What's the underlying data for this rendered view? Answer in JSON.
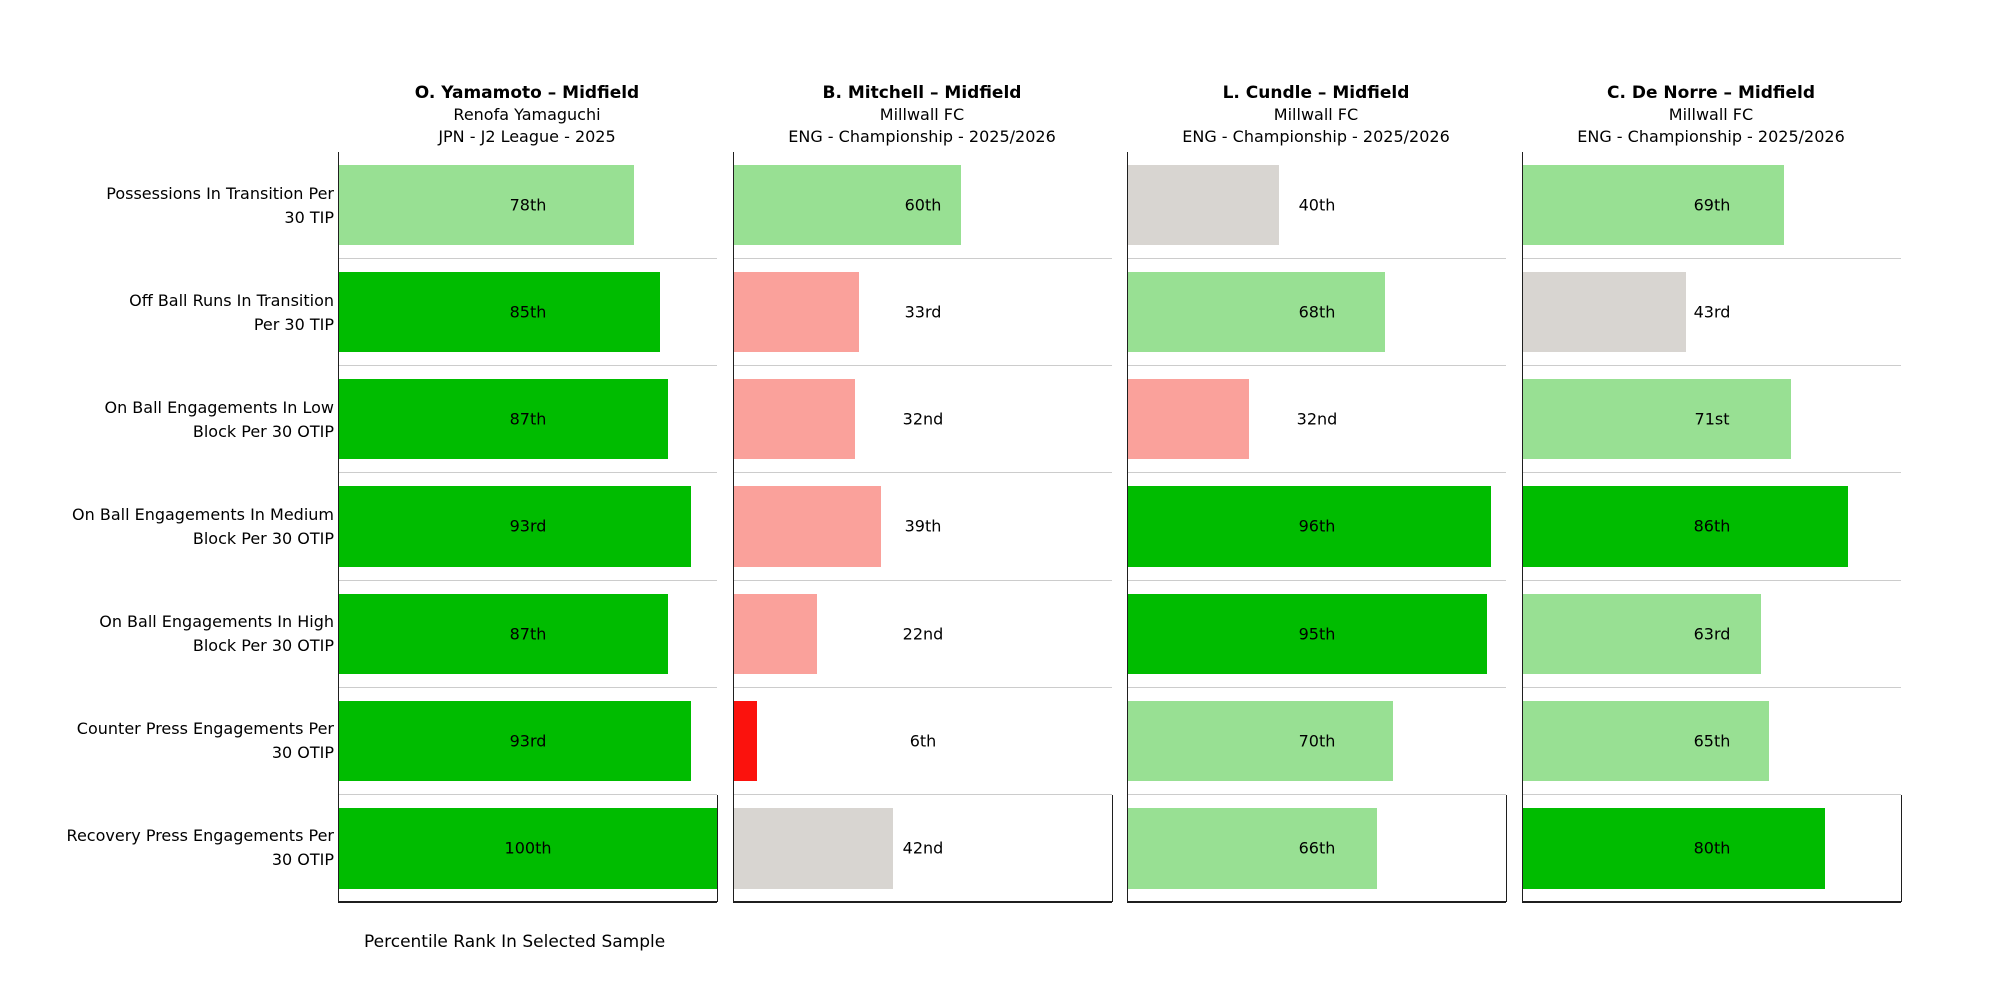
{
  "footer": "Percentile Rank In Selected Sample",
  "chart_data": {
    "type": "bar",
    "orientation": "horizontal",
    "unit": "percentile rank",
    "xlim": [
      0,
      100
    ],
    "grid": false,
    "xlabel": "Percentile Rank In Selected Sample",
    "categories": [
      "Possessions In Transition Per\n30 TIP",
      "Off Ball Runs In Transition\nPer 30 TIP",
      "On Ball Engagements In Low\nBlock Per 30 OTIP",
      "On Ball Engagements In Medium\nBlock Per 30 OTIP",
      "On Ball Engagements In High\nBlock Per 30 OTIP",
      "Counter Press Engagements Per\n30 OTIP",
      "Recovery Press Engagements Per\n30 OTIP"
    ],
    "series": [
      {
        "name": "O. Yamamoto – Midfield",
        "club": "Renofa Yamaguchi",
        "league": "JPN - J2 League - 2025",
        "values": [
          78,
          85,
          87,
          93,
          87,
          93,
          100
        ],
        "labels": [
          "78th",
          "85th",
          "87th",
          "93rd",
          "87th",
          "93rd",
          "100th"
        ]
      },
      {
        "name": "B. Mitchell – Midfield",
        "club": "Millwall FC",
        "league": "ENG - Championship - 2025/2026",
        "values": [
          60,
          33,
          32,
          39,
          22,
          6,
          42
        ],
        "labels": [
          "60th",
          "33rd",
          "32nd",
          "39th",
          "22nd",
          "6th",
          "42nd"
        ]
      },
      {
        "name": "L. Cundle – Midfield",
        "club": "Millwall FC",
        "league": "ENG - Championship - 2025/2026",
        "values": [
          40,
          68,
          32,
          96,
          95,
          70,
          66
        ],
        "labels": [
          "40th",
          "68th",
          "32nd",
          "96th",
          "95th",
          "70th",
          "66th"
        ]
      },
      {
        "name": "C. De Norre – Midfield",
        "club": "Millwall FC",
        "league": "ENG - Championship - 2025/2026",
        "values": [
          69,
          43,
          71,
          86,
          63,
          65,
          80
        ],
        "labels": [
          "69th",
          "43rd",
          "71st",
          "86th",
          "63rd",
          "65th",
          "80th"
        ]
      }
    ],
    "color_scale": [
      {
        "min": 80,
        "color": "#00bc00",
        "meaning": "excellent"
      },
      {
        "min": 60,
        "color": "#98e093",
        "meaning": "good"
      },
      {
        "min": 40,
        "color": "#d8d5d1",
        "meaning": "average"
      },
      {
        "min": 20,
        "color": "#faa19b",
        "meaning": "below-average"
      },
      {
        "min": 0,
        "color": "#fb120d",
        "meaning": "poor"
      }
    ]
  }
}
